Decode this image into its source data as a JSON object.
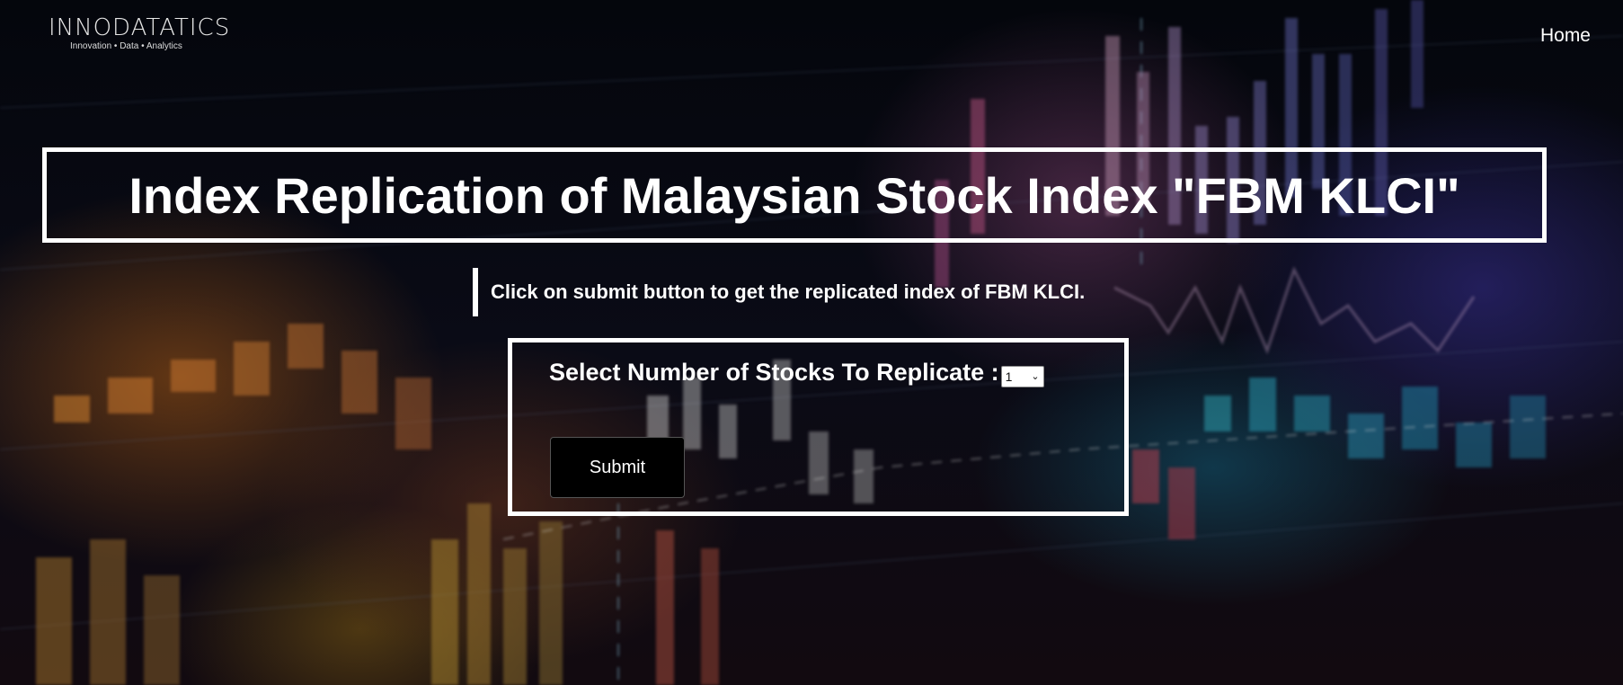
{
  "header": {
    "logo_text": "INNODATATICS",
    "logo_tagline": "Innovation • Data • Analytics",
    "nav": [
      {
        "label": "Home"
      }
    ]
  },
  "main": {
    "title": "Index Replication of Malaysian Stock Index \"FBM KLCI\"",
    "subtitle": "Click on submit button to get the replicated index of FBM KLCI.",
    "form": {
      "label": "Select Number of Stocks To Replicate :",
      "select_value": "1",
      "submit_label": "Submit"
    }
  },
  "icons": {
    "select_chevron": "chevron-down-icon",
    "logo_gear": "gear-icon"
  }
}
